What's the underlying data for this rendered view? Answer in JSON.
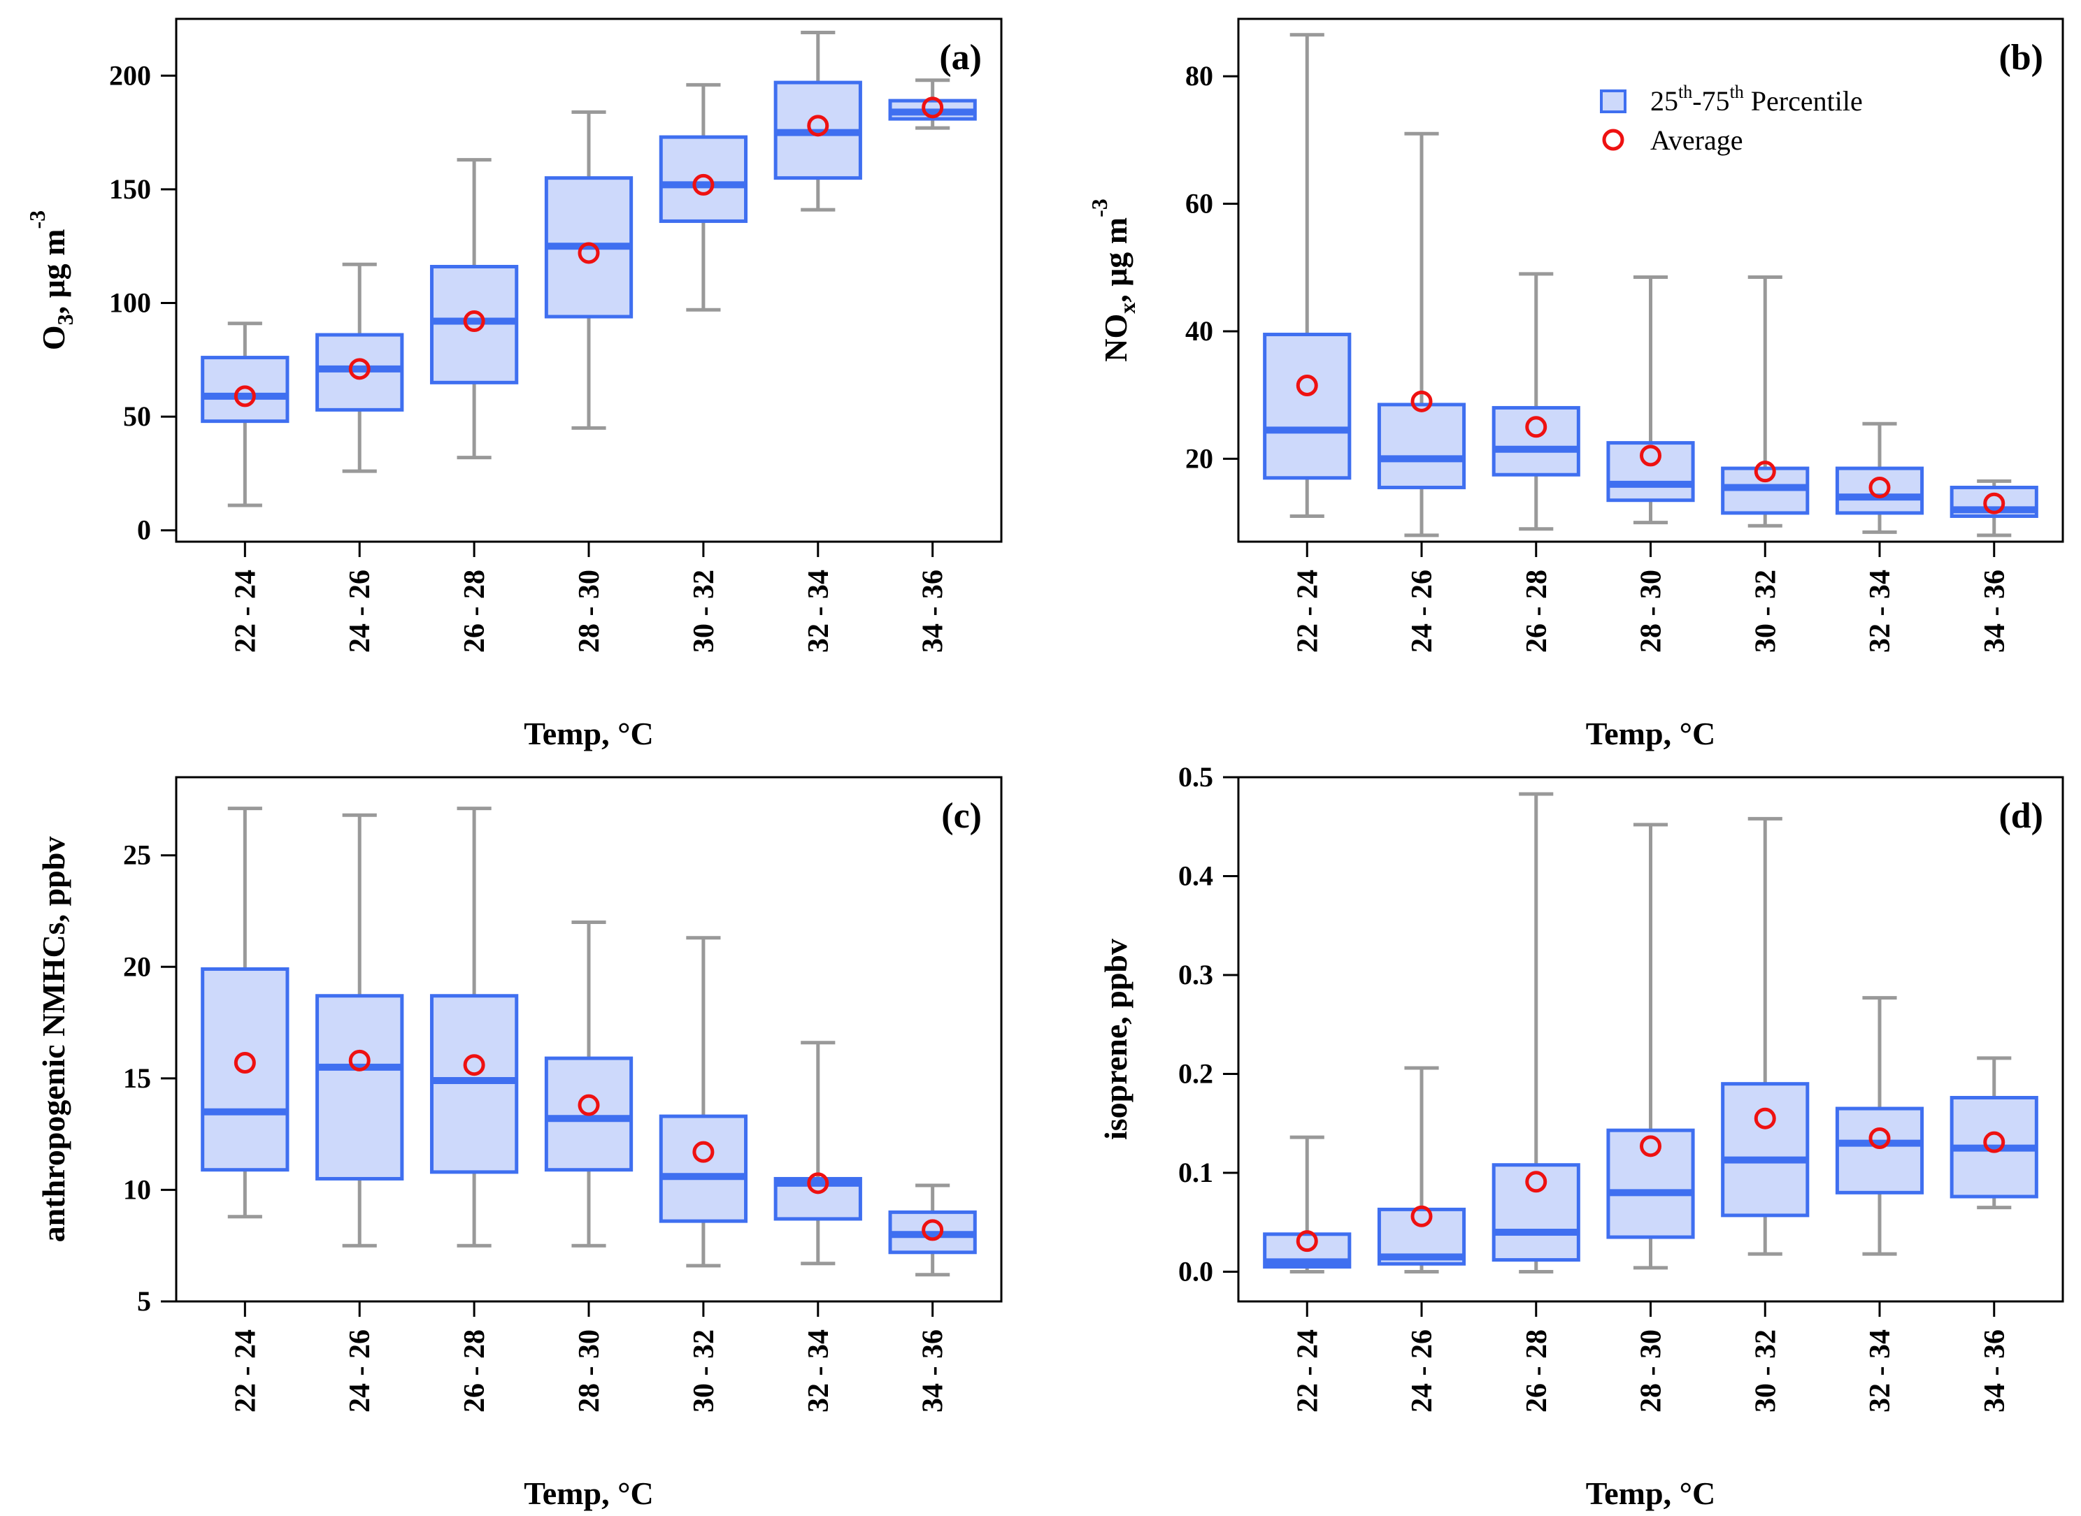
{
  "legend": {
    "percentile_label": "25th-75th Percentile",
    "percentile_base_a": "25",
    "percentile_sup_a": "th",
    "percentile_dash": "-75",
    "percentile_sup_b": "th",
    "percentile_tail": " Percentile",
    "average_label": "Average"
  },
  "colors": {
    "box_fill": "#cdd9fb",
    "box_edge": "#3f6ff0",
    "median": "#3f6ff0",
    "whisker": "#999999",
    "average": "#ee1111",
    "axis": "#000000"
  },
  "chart_data": [
    {
      "panel_label": "(a)",
      "type": "box",
      "title": "",
      "xlabel": "Temp, °C",
      "ylabel": "O3, μg m-3",
      "ylabel_parts": {
        "base": "O",
        "sub": "3",
        "mid": ", μg m",
        "sup": "-3"
      },
      "categories": [
        "22 - 24",
        "24 - 26",
        "26 - 28",
        "28 - 30",
        "30 - 32",
        "32 - 34",
        "34 - 36"
      ],
      "ylim": [
        -5,
        225
      ],
      "yticks": [
        0,
        50,
        100,
        150,
        200
      ],
      "ytick_labels": [
        "0",
        "50",
        "100",
        "150",
        "200"
      ],
      "legend_position": "none",
      "boxes": [
        {
          "whisker_low": 11,
          "q1": 48,
          "median": 59,
          "q3": 76,
          "whisker_high": 91,
          "mean": 59
        },
        {
          "whisker_low": 26,
          "q1": 53,
          "median": 71,
          "q3": 86,
          "whisker_high": 117,
          "mean": 71
        },
        {
          "whisker_low": 32,
          "q1": 65,
          "median": 92,
          "q3": 116,
          "whisker_high": 163,
          "mean": 92
        },
        {
          "whisker_low": 45,
          "q1": 94,
          "median": 125,
          "q3": 155,
          "whisker_high": 184,
          "mean": 122
        },
        {
          "whisker_low": 97,
          "q1": 136,
          "median": 152,
          "q3": 173,
          "whisker_high": 196,
          "mean": 152
        },
        {
          "whisker_low": 141,
          "q1": 155,
          "median": 175,
          "q3": 197,
          "whisker_high": 219,
          "mean": 178
        },
        {
          "whisker_low": 177,
          "q1": 181,
          "median": 184,
          "q3": 189,
          "whisker_high": 198,
          "mean": 186
        }
      ]
    },
    {
      "panel_label": "(b)",
      "type": "box",
      "title": "",
      "xlabel": "Temp, °C",
      "ylabel": "NOx, μg m-3",
      "ylabel_parts": {
        "base": "NO",
        "sub": "x",
        "mid": ", μg m",
        "sup": "-3"
      },
      "categories": [
        "22 - 24",
        "24 - 26",
        "26 - 28",
        "28 - 30",
        "30 - 32",
        "32 - 34",
        "34 - 36"
      ],
      "ylim": [
        7,
        89
      ],
      "yticks": [
        20,
        40,
        60,
        80
      ],
      "ytick_labels": [
        "20",
        "40",
        "60",
        "80"
      ],
      "legend_position": "top-right",
      "boxes": [
        {
          "whisker_low": 11,
          "q1": 17,
          "median": 24.5,
          "q3": 39.5,
          "whisker_high": 86.5,
          "mean": 31.5
        },
        {
          "whisker_low": 8,
          "q1": 15.5,
          "median": 20,
          "q3": 28.5,
          "whisker_high": 71,
          "mean": 29
        },
        {
          "whisker_low": 9,
          "q1": 17.5,
          "median": 21.5,
          "q3": 28,
          "whisker_high": 49,
          "mean": 25
        },
        {
          "whisker_low": 10,
          "q1": 13.5,
          "median": 16,
          "q3": 22.5,
          "whisker_high": 48.5,
          "mean": 20.5
        },
        {
          "whisker_low": 9.5,
          "q1": 11.5,
          "median": 15.5,
          "q3": 18.5,
          "whisker_high": 48.5,
          "mean": 18
        },
        {
          "whisker_low": 8.5,
          "q1": 11.5,
          "median": 14,
          "q3": 18.5,
          "whisker_high": 25.5,
          "mean": 15.5
        },
        {
          "whisker_low": 8,
          "q1": 11,
          "median": 12,
          "q3": 15.5,
          "whisker_high": 16.5,
          "mean": 13
        }
      ]
    },
    {
      "panel_label": "(c)",
      "type": "box",
      "title": "",
      "xlabel": "Temp, °C",
      "ylabel": "anthropogenic NMHCs,  ppbv",
      "categories": [
        "22 - 24",
        "24 - 26",
        "26 - 28",
        "28 - 30",
        "30 - 32",
        "32 - 34",
        "34 - 36"
      ],
      "ylim": [
        5,
        28.5
      ],
      "yticks": [
        5,
        10,
        15,
        20,
        25
      ],
      "ytick_labels": [
        "5",
        "10",
        "15",
        "20",
        "25"
      ],
      "legend_position": "none",
      "boxes": [
        {
          "whisker_low": 8.8,
          "q1": 10.9,
          "median": 13.5,
          "q3": 19.9,
          "whisker_high": 27.1,
          "mean": 15.7
        },
        {
          "whisker_low": 7.5,
          "q1": 10.5,
          "median": 15.5,
          "q3": 18.7,
          "whisker_high": 26.8,
          "mean": 15.8
        },
        {
          "whisker_low": 7.5,
          "q1": 10.8,
          "median": 14.9,
          "q3": 18.7,
          "whisker_high": 27.1,
          "mean": 15.6
        },
        {
          "whisker_low": 7.5,
          "q1": 10.9,
          "median": 13.2,
          "q3": 15.9,
          "whisker_high": 22,
          "mean": 13.8
        },
        {
          "whisker_low": 6.6,
          "q1": 8.6,
          "median": 10.6,
          "q3": 13.3,
          "whisker_high": 21.3,
          "mean": 11.7
        },
        {
          "whisker_low": 6.7,
          "q1": 8.7,
          "median": 10.3,
          "q3": 10.5,
          "whisker_high": 16.6,
          "mean": 10.3
        },
        {
          "whisker_low": 6.2,
          "q1": 7.2,
          "median": 8.0,
          "q3": 9.0,
          "whisker_high": 10.2,
          "mean": 8.2
        }
      ]
    },
    {
      "panel_label": "(d)",
      "type": "box",
      "title": "",
      "xlabel": "Temp, °C",
      "ylabel": "isoprene,  ppbv",
      "categories": [
        "22 - 24",
        "24 - 26",
        "26 - 28",
        "28 - 30",
        "30 - 32",
        "32 - 34",
        "34 - 36"
      ],
      "ylim": [
        -0.03,
        0.5
      ],
      "yticks": [
        0.0,
        0.1,
        0.2,
        0.3,
        0.4,
        0.5
      ],
      "ytick_labels": [
        "0.0",
        "0.1",
        "0.2",
        "0.3",
        "0.4",
        "0.5"
      ],
      "legend_position": "none",
      "boxes": [
        {
          "whisker_low": 0.0,
          "q1": 0.005,
          "median": 0.01,
          "q3": 0.038,
          "whisker_high": 0.136,
          "mean": 0.031
        },
        {
          "whisker_low": 0.0,
          "q1": 0.008,
          "median": 0.015,
          "q3": 0.063,
          "whisker_high": 0.206,
          "mean": 0.056
        },
        {
          "whisker_low": 0.0,
          "q1": 0.012,
          "median": 0.04,
          "q3": 0.108,
          "whisker_high": 0.483,
          "mean": 0.091
        },
        {
          "whisker_low": 0.004,
          "q1": 0.035,
          "median": 0.08,
          "q3": 0.143,
          "whisker_high": 0.452,
          "mean": 0.127
        },
        {
          "whisker_low": 0.018,
          "q1": 0.057,
          "median": 0.113,
          "q3": 0.19,
          "whisker_high": 0.458,
          "mean": 0.155
        },
        {
          "whisker_low": 0.018,
          "q1": 0.08,
          "median": 0.13,
          "q3": 0.165,
          "whisker_high": 0.277,
          "mean": 0.135
        },
        {
          "whisker_low": 0.065,
          "q1": 0.076,
          "median": 0.125,
          "q3": 0.176,
          "whisker_high": 0.216,
          "mean": 0.131
        }
      ]
    }
  ]
}
